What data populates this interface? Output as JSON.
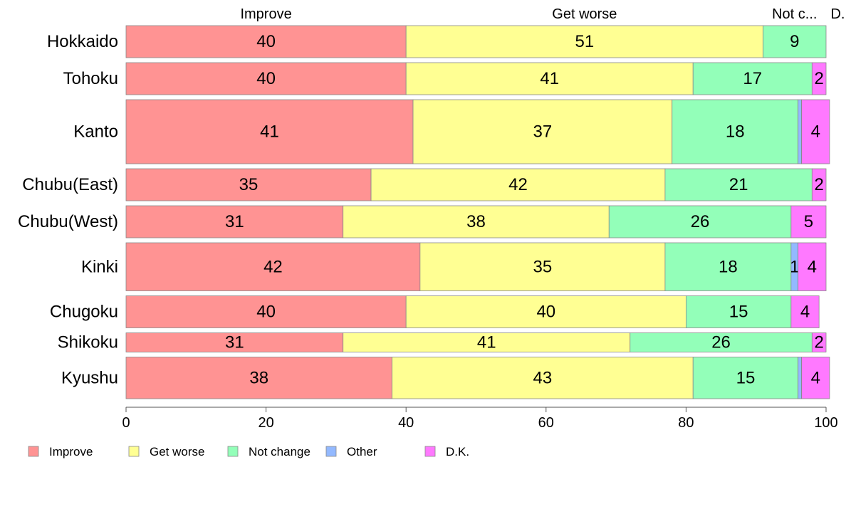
{
  "chart_data": {
    "type": "bar",
    "orientation": "horizontal",
    "stacked": true,
    "top_labels": [
      "Improve",
      "Get worse",
      "Not c...",
      "D..."
    ],
    "categories": [
      "Hokkaido",
      "Tohoku",
      "Kanto",
      "Chubu(East)",
      "Chubu(West)",
      "Kinki",
      "Chugoku",
      "Shikoku",
      "Kyushu"
    ],
    "series": [
      {
        "name": "Improve",
        "color": "#ff9393",
        "values": [
          40,
          40,
          41,
          35,
          31,
          42,
          40,
          31,
          38
        ],
        "labels": [
          "40",
          "40",
          "41",
          "35",
          "31",
          "42",
          "40",
          "31",
          "38"
        ]
      },
      {
        "name": "Get worse",
        "color": "#ffff93",
        "values": [
          51,
          41,
          37,
          42,
          38,
          35,
          40,
          41,
          43
        ],
        "labels": [
          "51",
          "41",
          "37",
          "42",
          "38",
          "35",
          "40",
          "41",
          "43"
        ]
      },
      {
        "name": "Not change",
        "color": "#93ffb9",
        "values": [
          9,
          17,
          18,
          21,
          26,
          18,
          15,
          26,
          15
        ],
        "labels": [
          "9",
          "17",
          "18",
          "21",
          "26",
          "18",
          "15",
          "26",
          "15"
        ]
      },
      {
        "name": "Other",
        "color": "#93b9ff",
        "values": [
          0,
          0,
          0.5,
          0,
          0,
          1,
          0,
          0,
          0.5
        ],
        "labels": [
          "",
          "",
          "",
          "",
          "",
          "1",
          "",
          "",
          ""
        ]
      },
      {
        "name": "D.K.",
        "color": "#ff79ff",
        "values": [
          0,
          2,
          4,
          2,
          5,
          4,
          4,
          2,
          4
        ],
        "labels": [
          "",
          "2",
          "4",
          "2",
          "5",
          "4",
          "4",
          "2",
          "4"
        ]
      }
    ],
    "row_weights": [
      1,
      1,
      2,
      1,
      1,
      1.5,
      1,
      0.6,
      1.3
    ],
    "xlim": [
      0,
      100
    ],
    "xticks": [
      "0",
      "20",
      "40",
      "60",
      "80",
      "100"
    ],
    "legend": {
      "placement": "bottom-left",
      "entries": [
        "Improve",
        "Get worse",
        "Not change",
        "Other",
        "D.K."
      ]
    },
    "grid": false,
    "xlabel": "",
    "ylabel": ""
  }
}
